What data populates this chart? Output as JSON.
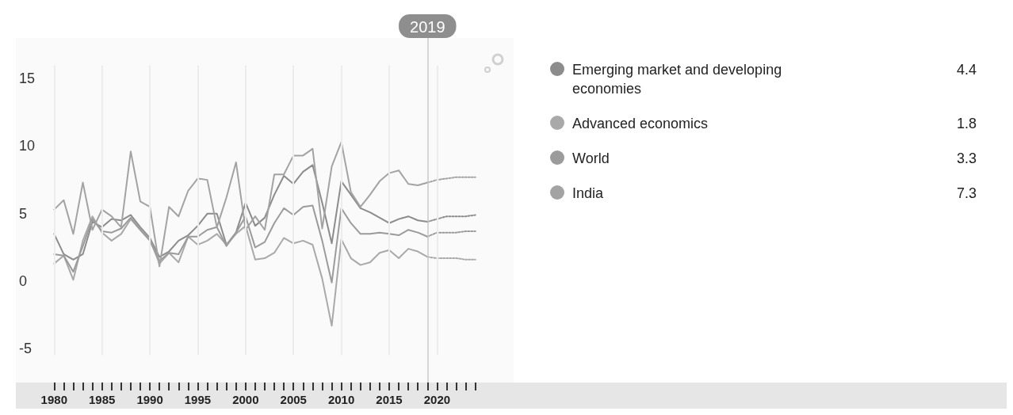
{
  "chart_data": {
    "type": "line",
    "x": [
      1980,
      1981,
      1982,
      1983,
      1984,
      1985,
      1986,
      1987,
      1988,
      1989,
      1990,
      1991,
      1992,
      1993,
      1994,
      1995,
      1996,
      1997,
      1998,
      1999,
      2000,
      2001,
      2002,
      2003,
      2004,
      2005,
      2006,
      2007,
      2008,
      2009,
      2010,
      2011,
      2012,
      2013,
      2014,
      2015,
      2016,
      2017,
      2018,
      2019
    ],
    "series": [
      {
        "name": "Emerging market and developing economies",
        "color": "#8c8c8c",
        "values": [
          3.5,
          2.0,
          1.6,
          2.0,
          4.4,
          4.0,
          4.6,
          4.5,
          4.9,
          4.0,
          3.2,
          1.8,
          2.2,
          3.0,
          3.4,
          4.1,
          5.0,
          5.0,
          2.7,
          3.6,
          5.8,
          4.1,
          4.7,
          6.4,
          7.8,
          7.2,
          8.1,
          8.6,
          5.8,
          2.8,
          7.4,
          6.4,
          5.4,
          5.1,
          4.7,
          4.3,
          4.6,
          4.8,
          4.5,
          4.4
        ]
      },
      {
        "name": "Advanced economics",
        "color": "#a9a9a9",
        "values": [
          1.3,
          1.9,
          0.1,
          3.0,
          4.8,
          3.6,
          3.0,
          3.5,
          4.6,
          3.8,
          3.1,
          1.3,
          2.1,
          1.4,
          3.3,
          2.7,
          3.0,
          3.5,
          2.7,
          3.5,
          4.1,
          1.6,
          1.7,
          2.1,
          3.2,
          2.8,
          3.0,
          2.7,
          0.2,
          -3.3,
          3.1,
          1.7,
          1.2,
          1.4,
          2.1,
          2.3,
          1.7,
          2.4,
          2.2,
          1.8
        ]
      },
      {
        "name": "World",
        "color": "#9b9b9b",
        "values": [
          2.0,
          1.9,
          0.7,
          2.6,
          4.6,
          3.7,
          3.6,
          3.9,
          4.7,
          3.8,
          3.0,
          1.5,
          2.1,
          2.0,
          3.3,
          3.3,
          3.8,
          4.0,
          2.6,
          3.6,
          4.8,
          2.5,
          2.9,
          4.3,
          5.4,
          4.9,
          5.5,
          5.6,
          3.0,
          -0.1,
          5.4,
          4.3,
          3.5,
          3.5,
          3.6,
          3.5,
          3.4,
          3.8,
          3.6,
          3.3
        ]
      },
      {
        "name": "India",
        "color": "#a3a3a3",
        "values": [
          5.3,
          6.0,
          3.5,
          7.3,
          3.8,
          5.3,
          4.8,
          4.0,
          9.6,
          5.9,
          5.5,
          1.1,
          5.5,
          4.8,
          6.7,
          7.6,
          7.5,
          4.0,
          6.2,
          8.8,
          3.8,
          4.8,
          3.8,
          7.9,
          7.9,
          9.3,
          9.3,
          9.8,
          3.9,
          8.5,
          10.3,
          6.6,
          5.5,
          6.4,
          7.4,
          8.0,
          8.2,
          7.2,
          7.1,
          7.3
        ]
      },
      {
        "color": "#8c8c8c",
        "line_style": "dotted",
        "x": [
          2019,
          2020,
          2021,
          2022,
          2023,
          2024
        ],
        "values": [
          4.4,
          4.6,
          4.8,
          4.8,
          4.8,
          4.9
        ]
      },
      {
        "color": "#a9a9a9",
        "line_style": "dotted",
        "x": [
          2019,
          2020,
          2021,
          2022,
          2023,
          2024
        ],
        "values": [
          1.8,
          1.7,
          1.7,
          1.7,
          1.6,
          1.6
        ]
      },
      {
        "color": "#9b9b9b",
        "line_style": "dotted",
        "x": [
          2019,
          2020,
          2021,
          2022,
          2023,
          2024
        ],
        "values": [
          3.3,
          3.6,
          3.6,
          3.6,
          3.7,
          3.7
        ]
      },
      {
        "color": "#a3a3a3",
        "line_style": "dotted",
        "x": [
          2019,
          2020,
          2021,
          2022,
          2023,
          2024
        ],
        "values": [
          7.3,
          7.5,
          7.6,
          7.7,
          7.7,
          7.7
        ]
      }
    ],
    "xlim": [
      1976,
      2028
    ],
    "xticks": [
      1980,
      {
        "value": 1981,
        "label": null
      },
      {
        "value": 1982,
        "label": null
      },
      {
        "value": 1983,
        "label": null
      },
      {
        "value": 1984,
        "label": null
      },
      1985,
      {
        "value": 1986,
        "label": null
      },
      {
        "value": 1987,
        "label": null
      },
      {
        "value": 1988,
        "label": null
      },
      {
        "value": 1989,
        "label": null
      },
      1990,
      {
        "value": 1991,
        "label": null
      },
      {
        "value": 1992,
        "label": null
      },
      {
        "value": 1993,
        "label": null
      },
      {
        "value": 1994,
        "label": null
      },
      1995,
      {
        "value": 1996,
        "label": null
      },
      {
        "value": 1997,
        "label": null
      },
      {
        "value": 1998,
        "label": null
      },
      {
        "value": 1999,
        "label": null
      },
      2000,
      {
        "value": 2001,
        "label": null
      },
      {
        "value": 2002,
        "label": null
      },
      {
        "value": 2003,
        "label": null
      },
      {
        "value": 2004,
        "label": null
      },
      2005,
      {
        "value": 2006,
        "label": null
      },
      {
        "value": 2007,
        "label": null
      },
      {
        "value": 2008,
        "label": null
      },
      {
        "value": 2009,
        "label": null
      },
      2010,
      {
        "value": 2011,
        "label": null
      },
      {
        "value": 2012,
        "label": null
      },
      {
        "value": 2013,
        "label": null
      },
      {
        "value": 2014,
        "label": null
      },
      2015,
      {
        "value": 2016,
        "label": null
      },
      {
        "value": 2017,
        "label": null
      },
      {
        "value": 2018,
        "label": null
      },
      {
        "value": 2019,
        "label": null
      },
      2020,
      {
        "value": 2021,
        "label": null
      },
      {
        "value": 2022,
        "label": null
      },
      {
        "value": 2023,
        "label": null
      },
      {
        "value": 2024,
        "label": null
      }
    ],
    "ylim": [
      -7.5,
      18
    ],
    "yticks": [
      -5,
      0,
      5,
      10,
      15
    ],
    "annotations": [
      "4.4",
      "1.8",
      "3.3",
      "7.3"
    ],
    "grid": "x",
    "legend": "right",
    "marker": "none",
    "line_style": "solid",
    "ref_lines": [
      {
        "axis": "x",
        "value": 2019,
        "label": "2019",
        "color": "#c8c8c8"
      }
    ]
  }
}
